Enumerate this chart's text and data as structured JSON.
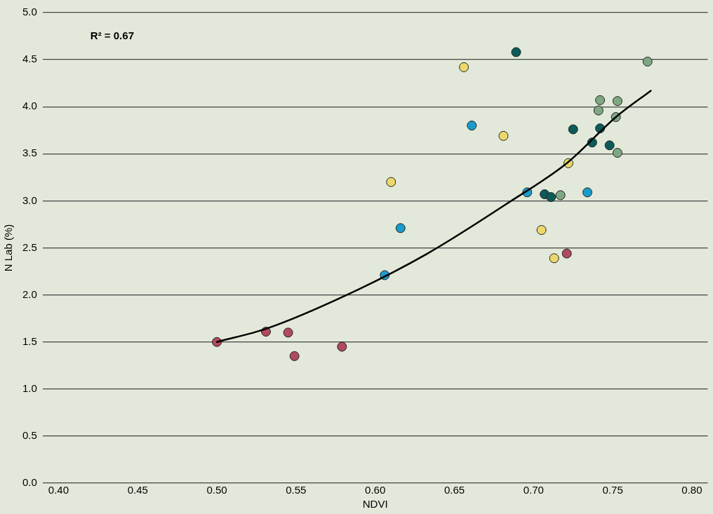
{
  "chart_data": {
    "type": "scatter",
    "xlabel": "NDVI",
    "ylabel": "N Lab (%)",
    "annotations": [
      "R² = 0.67"
    ],
    "xlim": [
      0.39,
      0.81
    ],
    "xticks": [
      {
        "value": 0.4,
        "label": "0.40"
      },
      {
        "value": 0.45,
        "label": "0.45"
      },
      {
        "value": 0.5,
        "label": "0.50"
      },
      {
        "value": 0.55,
        "label": "0.55"
      },
      {
        "value": 0.6,
        "label": "0.60"
      },
      {
        "value": 0.65,
        "label": "0.65"
      },
      {
        "value": 0.7,
        "label": "0.70"
      },
      {
        "value": 0.75,
        "label": "0.75"
      },
      {
        "value": 0.8,
        "label": "0.80"
      }
    ],
    "ylim": [
      0,
      5
    ],
    "yticks": [
      {
        "value": 0,
        "label": "0.0"
      },
      {
        "value": 0.5,
        "label": "0.5"
      },
      {
        "value": 1,
        "label": "1.0"
      },
      {
        "value": 1.5,
        "label": "1.5"
      },
      {
        "value": 2,
        "label": "2.0"
      },
      {
        "value": 2.5,
        "label": "2.5"
      },
      {
        "value": 3,
        "label": "3.0"
      },
      {
        "value": 3.5,
        "label": "3.5"
      },
      {
        "value": 4,
        "label": "4.0"
      },
      {
        "value": 4.5,
        "label": "4.5"
      },
      {
        "value": 5,
        "label": "5.0"
      }
    ],
    "grid": "y",
    "legend": false,
    "marker": "circle",
    "series": [
      {
        "color": "#b04a5e",
        "x": [
          0.5,
          0.531,
          0.545,
          0.549,
          0.579,
          0.721
        ],
        "values": [
          1.5,
          1.61,
          1.6,
          1.35,
          1.45,
          2.44
        ]
      },
      {
        "color": "#1a9bcb",
        "x": [
          0.606,
          0.616,
          0.661,
          0.696,
          0.734
        ],
        "values": [
          2.21,
          2.71,
          3.8,
          3.09,
          3.09
        ]
      },
      {
        "color": "#ecd86c",
        "x": [
          0.61,
          0.656,
          0.681,
          0.722,
          0.705,
          0.713
        ],
        "values": [
          3.2,
          4.42,
          3.69,
          3.4,
          2.69,
          2.39
        ]
      },
      {
        "color": "#0b5c59",
        "x": [
          0.689,
          0.725,
          0.742,
          0.737,
          0.748,
          0.707,
          0.711
        ],
        "values": [
          4.58,
          3.76,
          3.77,
          3.62,
          3.59,
          3.07,
          3.04
        ]
      },
      {
        "color": "#7fa783",
        "x": [
          0.772,
          0.742,
          0.753,
          0.741,
          0.752,
          0.753,
          0.717
        ],
        "values": [
          4.48,
          4.07,
          4.06,
          3.96,
          3.89,
          3.51,
          3.06
        ]
      },
      {
        "type": "line",
        "color": "#000000",
        "marker": "none",
        "x": [
          0.5,
          0.531,
          0.582,
          0.633,
          0.685,
          0.721,
          0.752,
          0.774
        ],
        "values": [
          1.5,
          1.64,
          2.0,
          2.44,
          2.99,
          3.4,
          3.89,
          4.17
        ]
      }
    ]
  }
}
